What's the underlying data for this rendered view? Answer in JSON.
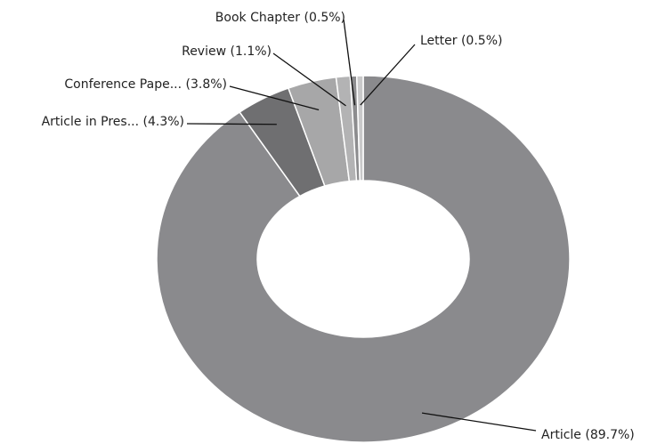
{
  "chart_data": {
    "type": "donut",
    "categories": [
      "Article (89.7%)",
      "Article in Pres... (4.3%)",
      "Conference Pape... (3.8%)",
      "Review (1.1%)",
      "Book Chapter (0.5%)",
      "Letter (0.5%)"
    ],
    "values": [
      89.7,
      4.3,
      3.8,
      1.1,
      0.5,
      0.5
    ],
    "colors": [
      "#8a8a8d",
      "#6f6f71",
      "#a7a7a8",
      "#b3b3b4",
      "#8c8c8e",
      "#c9c9ca"
    ]
  }
}
